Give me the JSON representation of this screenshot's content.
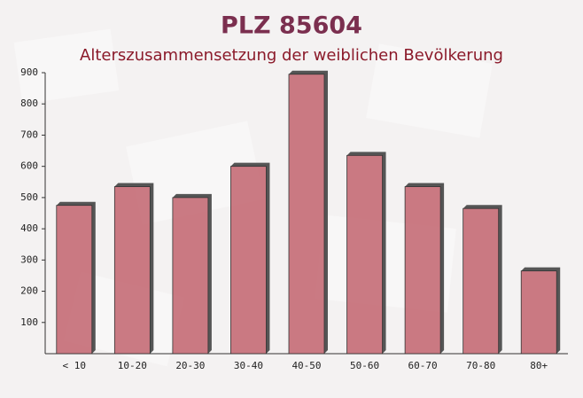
{
  "chart_data": {
    "type": "bar",
    "title": "PLZ 85604",
    "subtitle": "Alterszusammensetzung der weiblichen Bevölkerung",
    "categories": [
      "< 10",
      "10-20",
      "20-30",
      "30-40",
      "40-50",
      "50-60",
      "60-70",
      "70-80",
      "80+"
    ],
    "values": [
      475,
      535,
      500,
      600,
      895,
      635,
      535,
      465,
      265
    ],
    "color": "#c2646e",
    "ylim": [
      0,
      900
    ],
    "yticks": [
      100,
      200,
      300,
      400,
      500,
      600,
      700,
      800,
      900
    ],
    "grid": false
  }
}
